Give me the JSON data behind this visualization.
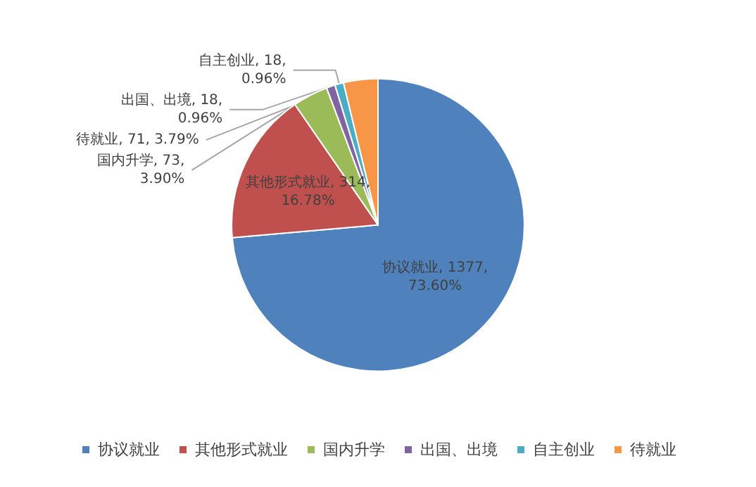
{
  "chart_data": {
    "type": "pie",
    "categories": [
      "协议就业",
      "其他形式就业",
      "国内升学",
      "出国、出境",
      "自主创业",
      "待就业"
    ],
    "values": [
      73.6,
      16.78,
      3.9,
      0.96,
      0.96,
      3.79
    ],
    "value_labels": [
      "协议就业, 1377,\n73.60%",
      "其他形式就业, 314,\n16.78%",
      "国内升学, 73,\n3.90%",
      "出国、出境, 18,\n0.96%",
      "自主创业, 18,\n0.96%",
      "待就业, 71, 3.79%"
    ],
    "colors": [
      "#4f81bd",
      "#c0504d",
      "#9bbb59",
      "#8064a2",
      "#4bacc6",
      "#f79646"
    ],
    "data_labels": true,
    "legend": "bottom"
  }
}
